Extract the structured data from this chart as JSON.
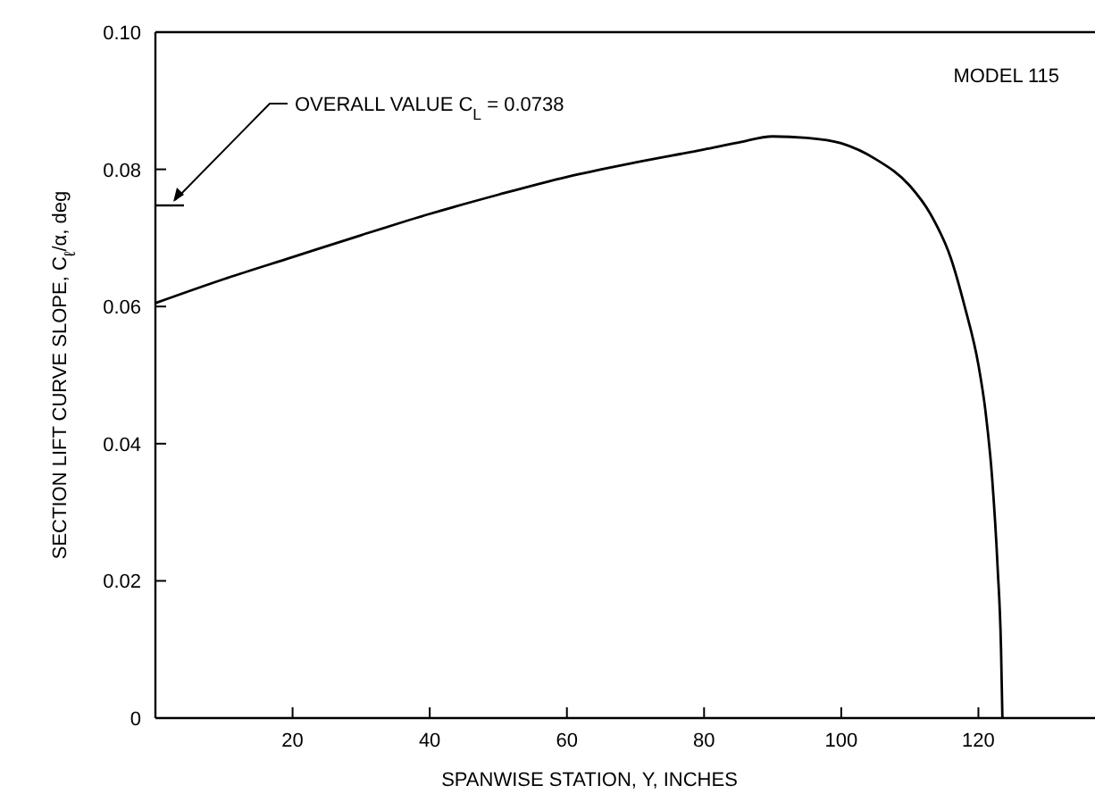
{
  "chart_data": {
    "type": "line",
    "xlabel": "SPANWISE STATION, Y, INCHES",
    "ylabel": "SECTION LIFT CURVE SLOPE, C$_{ℓ}$/α, deg",
    "x": [
      0,
      10,
      20,
      30,
      40,
      50,
      60,
      70,
      80,
      85,
      90,
      95,
      100,
      105,
      110,
      113,
      116,
      118,
      120,
      121,
      122,
      122.8,
      123.3,
      123.5
    ],
    "series": [
      {
        "color": "#000000",
        "values": [
          0.0605,
          0.064,
          0.0672,
          0.0704,
          0.0735,
          0.0763,
          0.0789,
          0.081,
          0.0829,
          0.0839,
          0.0848,
          0.0846,
          0.0838,
          0.0815,
          0.0776,
          0.0735,
          0.067,
          0.06,
          0.0515,
          0.045,
          0.035,
          0.022,
          0.01,
          0
        ]
      }
    ],
    "xlim": [
      0,
      137
    ],
    "xticks": [
      20,
      40,
      60,
      80,
      100,
      120
    ],
    "ylim": [
      0,
      0.1
    ],
    "yticks": [
      0,
      0.02,
      0.04,
      0.06,
      0.08,
      {
        "value": 0.1,
        "label": "0.10"
      }
    ],
    "grid": false,
    "marker": "none",
    "line_style": "solid",
    "annotations": [
      "MODEL 115",
      "OVERALL VALUE C$_{L}$ = 0.0738"
    ]
  }
}
